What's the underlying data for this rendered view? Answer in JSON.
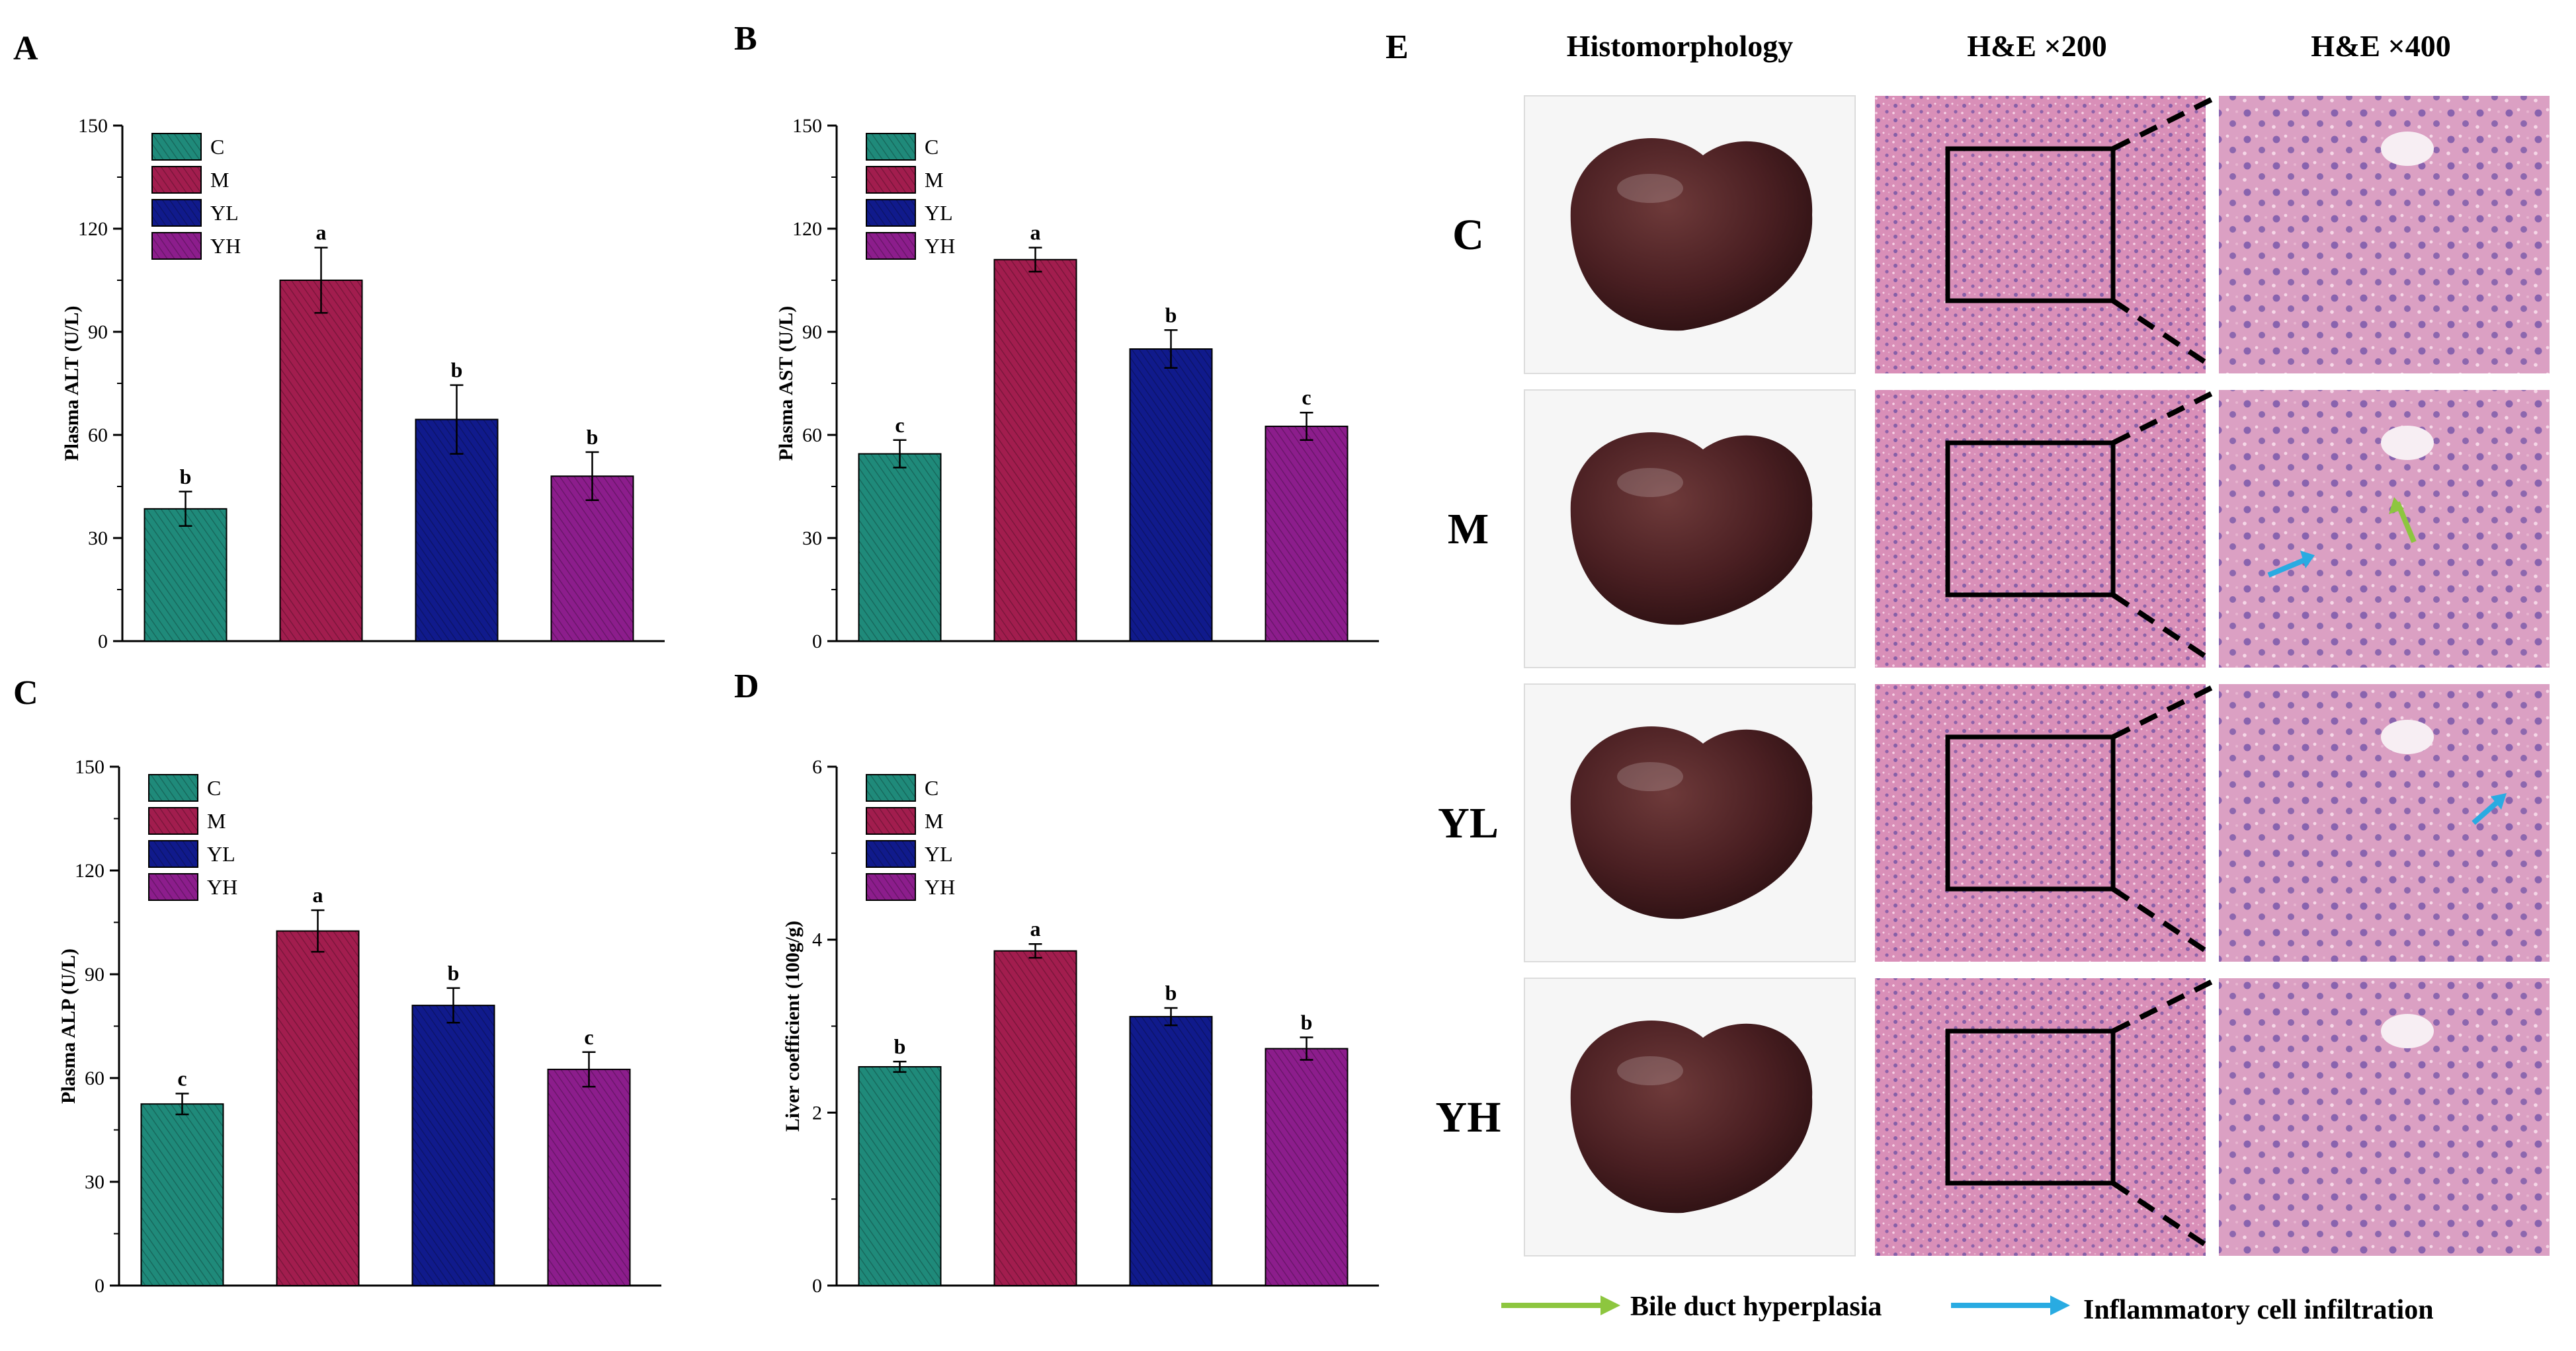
{
  "figure": {
    "panel_letters": [
      "A",
      "B",
      "C",
      "D",
      "E"
    ],
    "palette": {
      "C": "#1f8a7a",
      "M": "#a21d4e",
      "YL": "#101a8c",
      "YH": "#8c1d8c"
    }
  },
  "chart_data": [
    {
      "panel": "A",
      "type": "bar",
      "categories": [
        "C",
        "M",
        "YL",
        "YH"
      ],
      "values": [
        38.5,
        105,
        64.5,
        48
      ],
      "errors": [
        5,
        9.5,
        10,
        7
      ],
      "labels": [
        "b",
        "a",
        "b",
        "b"
      ],
      "ylabel": "Plasma ALT (U/L)",
      "ylim": [
        0,
        150
      ],
      "yticks": [
        "0",
        "30",
        "60",
        "90",
        "120",
        "150"
      ],
      "legend": [
        "C",
        "M",
        "YL",
        "YH"
      ]
    },
    {
      "panel": "B",
      "type": "bar",
      "categories": [
        "C",
        "M",
        "YL",
        "YH"
      ],
      "values": [
        54.5,
        111,
        85,
        62.5
      ],
      "errors": [
        4,
        3.5,
        5.5,
        4
      ],
      "labels": [
        "c",
        "a",
        "b",
        "c"
      ],
      "ylabel": "Plasma AST (U/L)",
      "ylim": [
        0,
        150
      ],
      "yticks": [
        "0",
        "30",
        "60",
        "90",
        "120",
        "150"
      ],
      "legend": [
        "C",
        "M",
        "YL",
        "YH"
      ]
    },
    {
      "panel": "C",
      "type": "bar",
      "categories": [
        "C",
        "M",
        "YL",
        "YH"
      ],
      "values": [
        52.5,
        102.5,
        81,
        62.5
      ],
      "errors": [
        3,
        6,
        5,
        5
      ],
      "labels": [
        "c",
        "a",
        "b",
        "c"
      ],
      "ylabel": "Plasma ALP (U/L)",
      "ylim": [
        0,
        150
      ],
      "yticks": [
        "0",
        "30",
        "60",
        "90",
        "120",
        "150"
      ],
      "legend": [
        "C",
        "M",
        "YL",
        "YH"
      ]
    },
    {
      "panel": "D",
      "type": "bar",
      "categories": [
        "C",
        "M",
        "YL",
        "YH"
      ],
      "values": [
        2.53,
        3.87,
        3.11,
        2.74
      ],
      "errors": [
        0.06,
        0.08,
        0.1,
        0.13
      ],
      "labels": [
        "b",
        "a",
        "b",
        "b"
      ],
      "ylabel": "Liver coefficient (100g/g)",
      "ylim": [
        0,
        6
      ],
      "yticks": [
        "0",
        "2",
        "4",
        "6"
      ],
      "legend": [
        "C",
        "M",
        "YL",
        "YH"
      ]
    }
  ],
  "histology": {
    "columns": [
      "Histomorphology",
      "H&E ×200",
      "H&E ×400"
    ],
    "rows": [
      "C",
      "M",
      "YL",
      "YH"
    ],
    "legend": [
      {
        "color": "#8dc63f",
        "label": "Bile duct hyperplasia"
      },
      {
        "color": "#29abe2",
        "label": "Inflammatory cell infiltration"
      }
    ]
  }
}
